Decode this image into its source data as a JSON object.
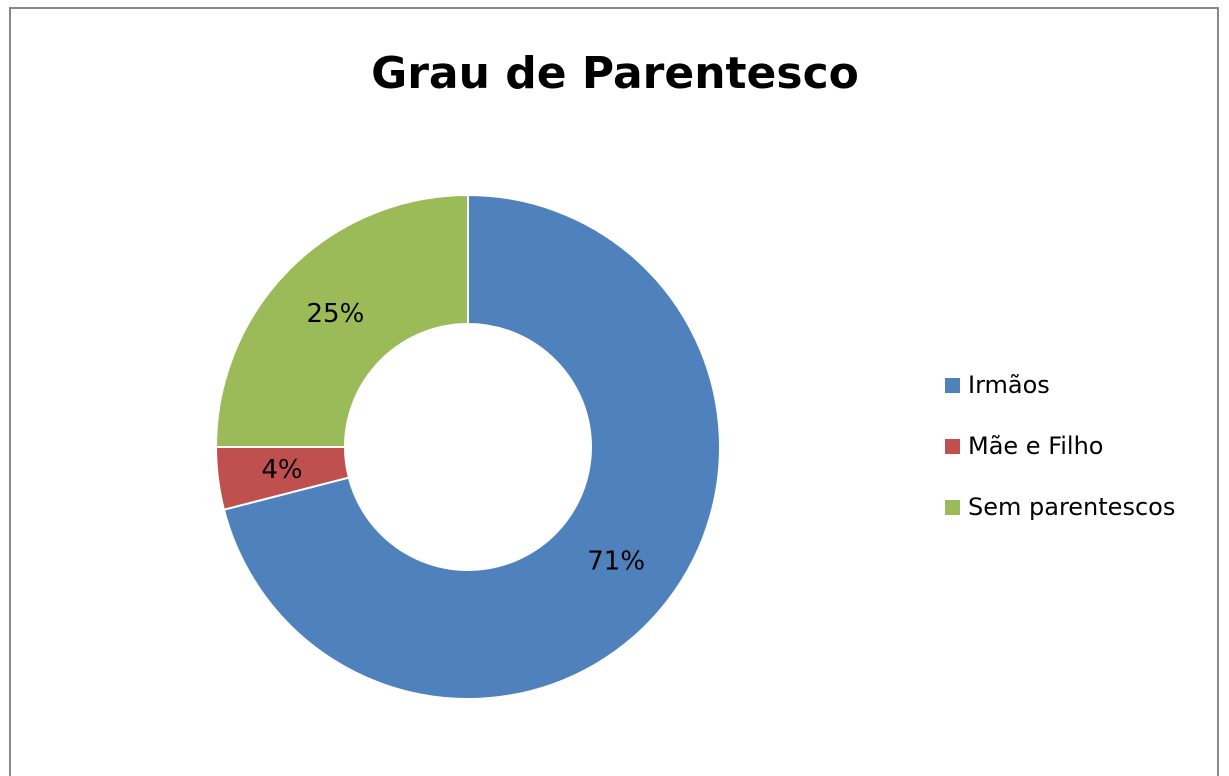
{
  "chart_data": {
    "type": "pie",
    "title": "Grau de Parentesco",
    "categories": [
      "Irmãos",
      "Mãe e Filho",
      "Sem parentescos"
    ],
    "values": [
      71,
      4,
      25
    ],
    "value_labels": [
      "71%",
      "4%",
      "25%"
    ],
    "colors": [
      "#4f81bd",
      "#c0504d",
      "#9bbb59"
    ],
    "legend": "right"
  }
}
